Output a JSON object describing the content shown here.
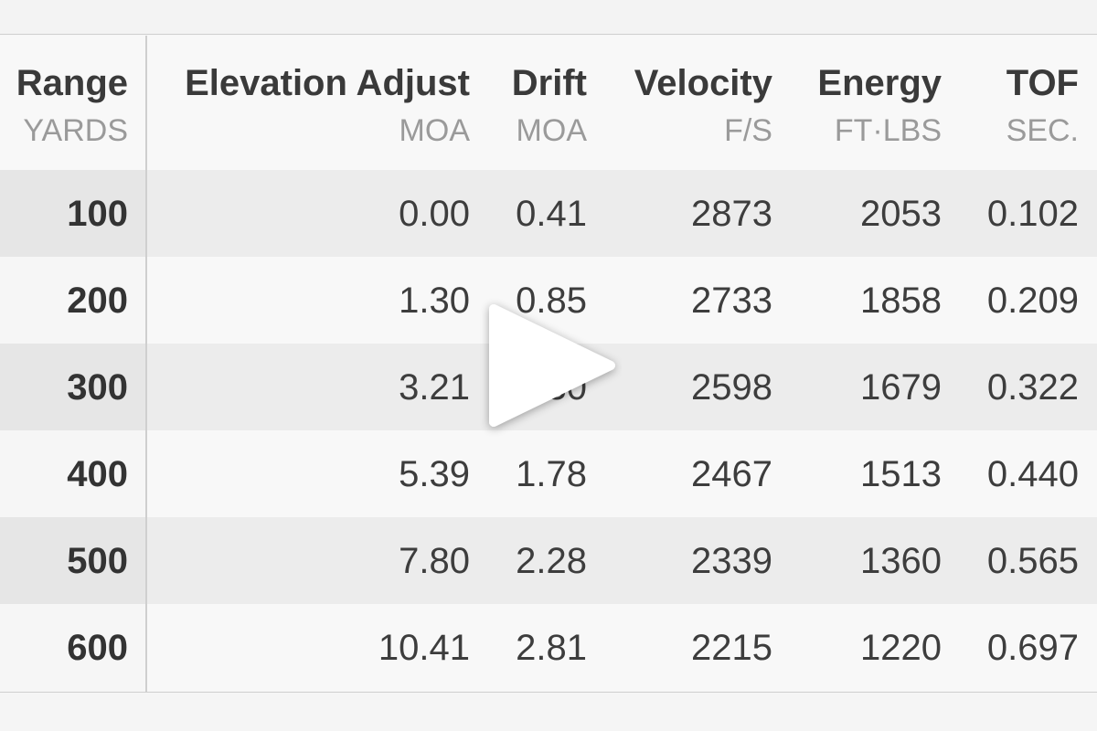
{
  "table": {
    "headers": [
      {
        "title": "Range",
        "unit": "YARDS"
      },
      {
        "title": "Elevation Adjust",
        "unit": "MOA"
      },
      {
        "title": "Drift",
        "unit": "MOA"
      },
      {
        "title": "Velocity",
        "unit": "F/S"
      },
      {
        "title": "Energy",
        "unit": "FT·LBS"
      },
      {
        "title": "TOF",
        "unit": "SEC."
      }
    ],
    "rows": [
      [
        "100",
        "0.00",
        "0.41",
        "2873",
        "2053",
        "0.102"
      ],
      [
        "200",
        "1.30",
        "0.85",
        "2733",
        "1858",
        "0.209"
      ],
      [
        "300",
        "3.21",
        "1.30",
        "2598",
        "1679",
        "0.322"
      ],
      [
        "400",
        "5.39",
        "1.78",
        "2467",
        "1513",
        "0.440"
      ],
      [
        "500",
        "7.80",
        "2.28",
        "2339",
        "1360",
        "0.565"
      ],
      [
        "600",
        "10.41",
        "2.81",
        "2215",
        "1220",
        "0.697"
      ]
    ]
  },
  "overlay": {
    "play_icon": "play-icon",
    "play_color": "#ffffff"
  }
}
